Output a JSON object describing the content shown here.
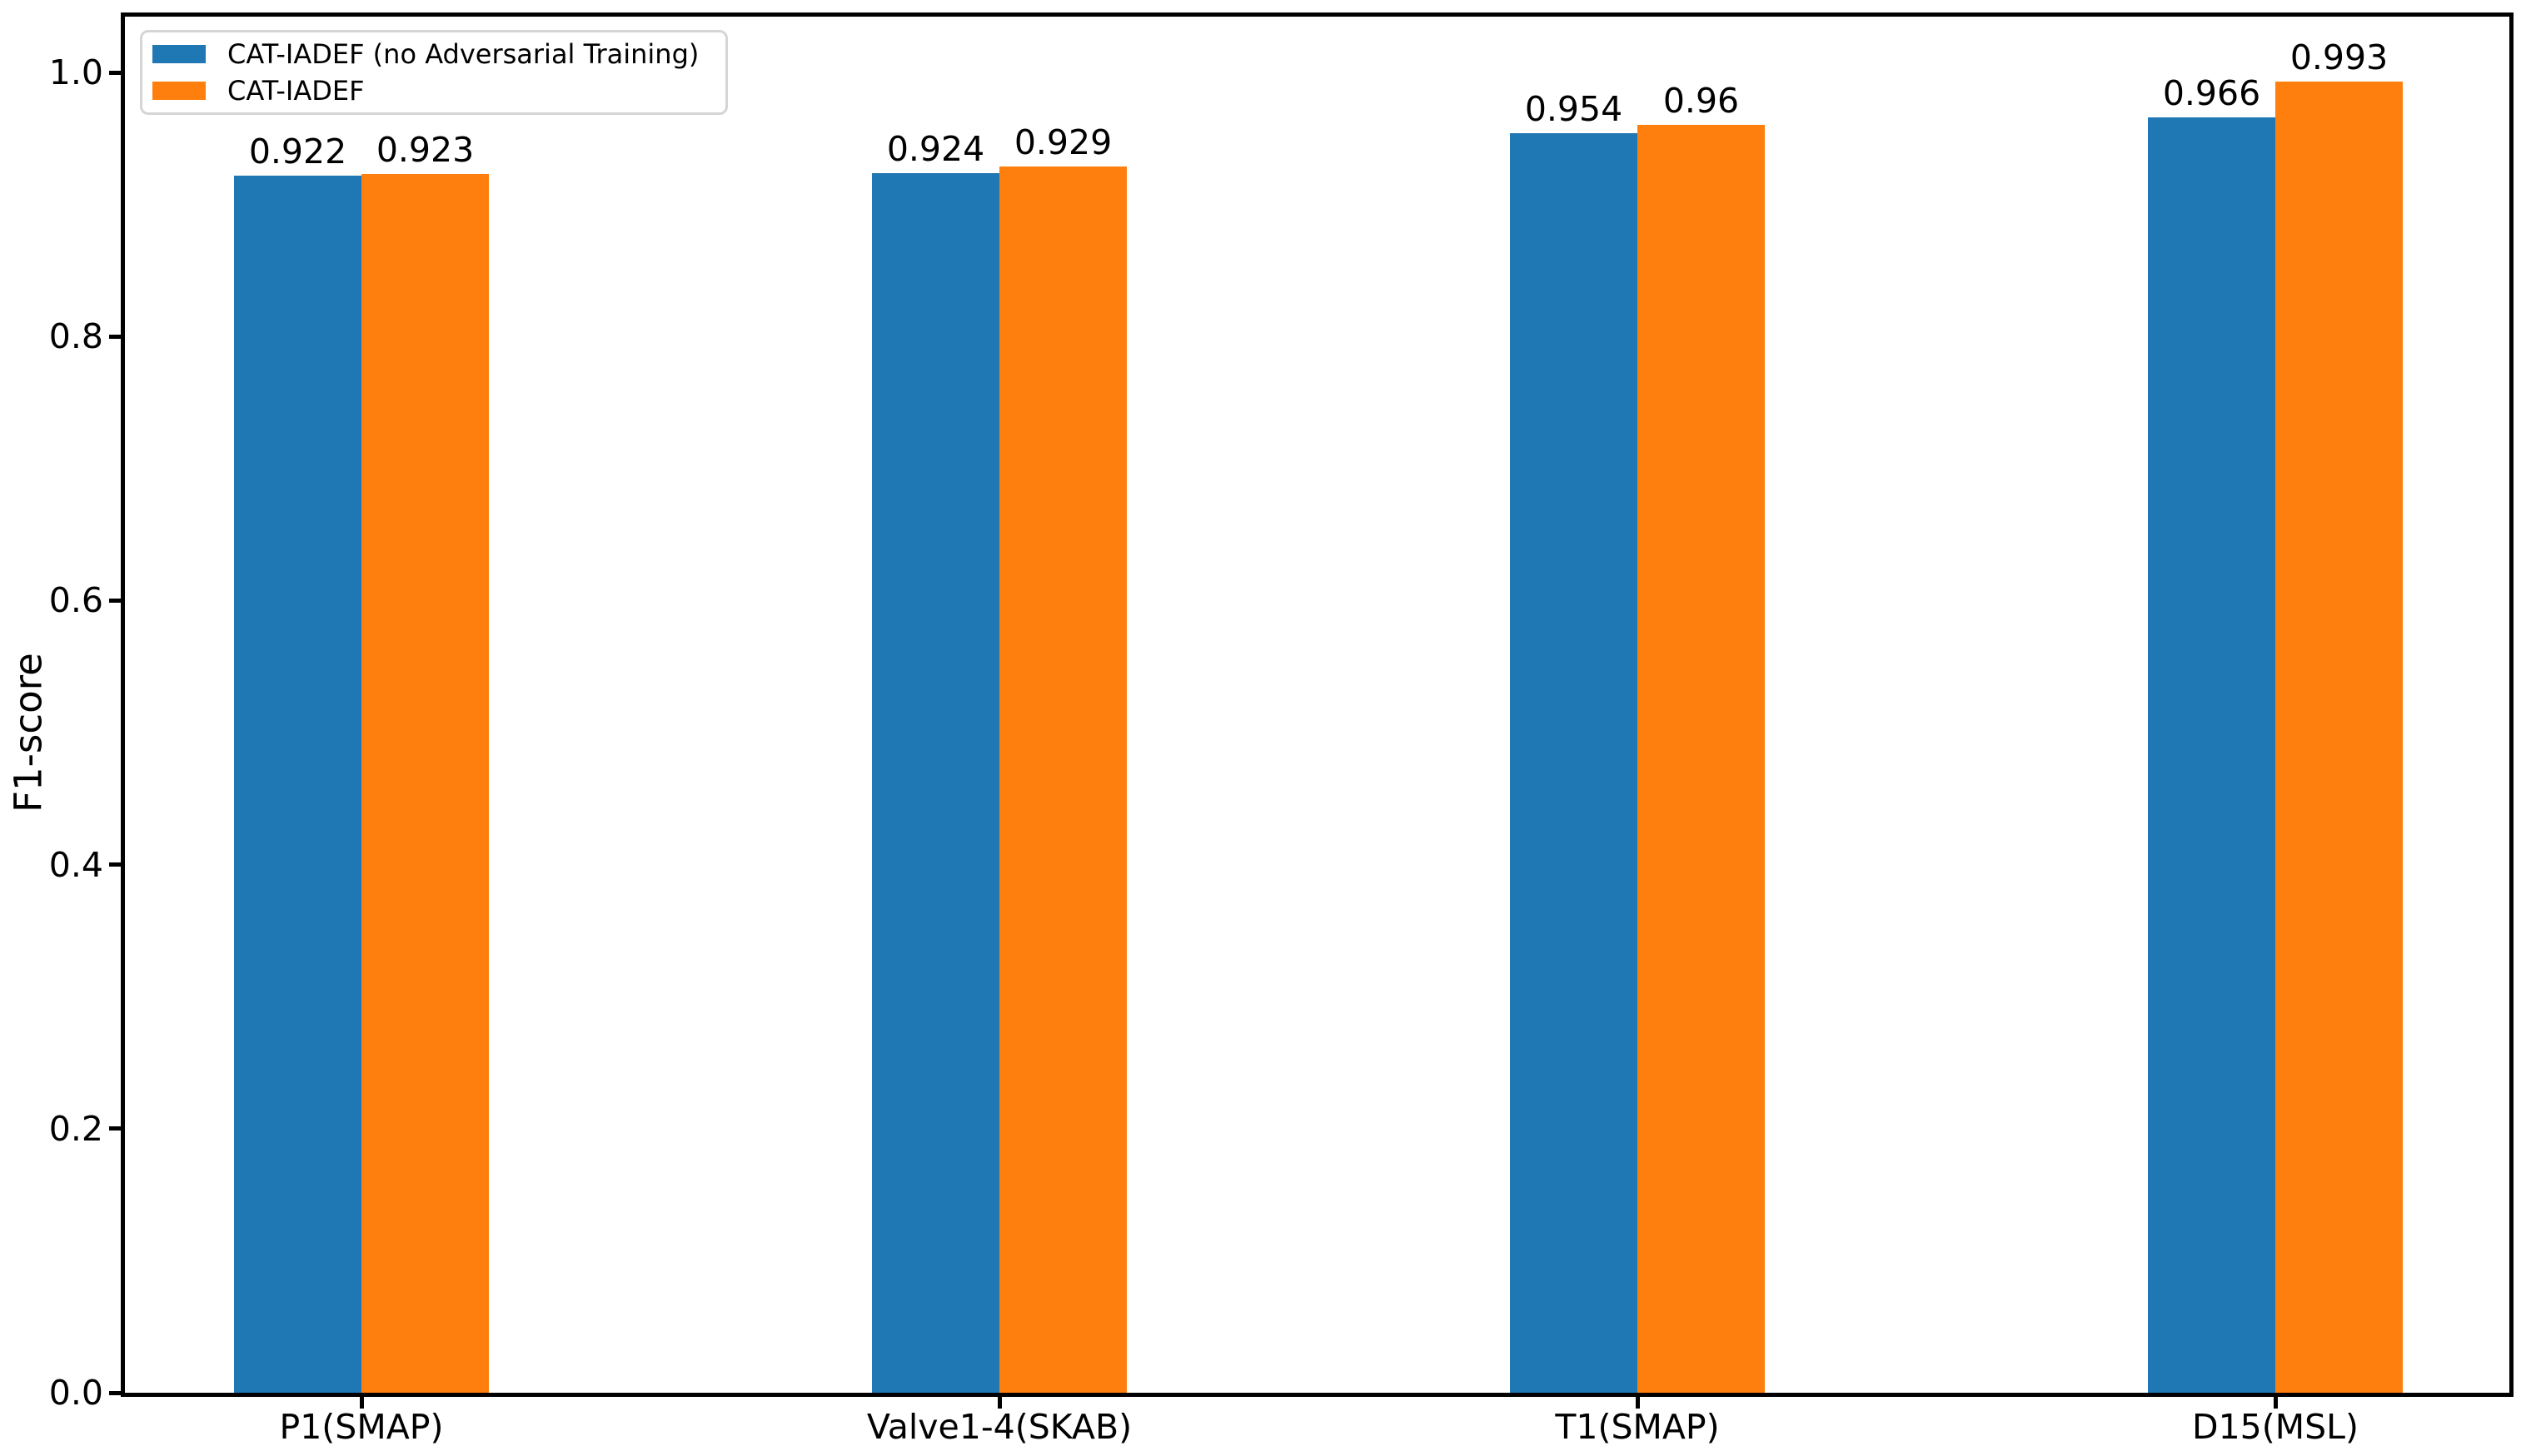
{
  "chart_data": {
    "type": "bar",
    "title": "",
    "xlabel": "",
    "ylabel": "F1-score",
    "categories": [
      "P1(SMAP)",
      "Valve1-4(SKAB)",
      "T1(SMAP)",
      "D15(MSL)"
    ],
    "series": [
      {
        "name": "CAT-IADEF (no Adversarial Training)",
        "color": "#1f77b4",
        "values": [
          0.922,
          0.924,
          0.954,
          0.966
        ],
        "value_labels": [
          "0.922",
          "0.924",
          "0.954",
          "0.966"
        ]
      },
      {
        "name": "CAT-IADEF",
        "color": "#ff7f0e",
        "values": [
          0.923,
          0.929,
          0.96,
          0.993
        ],
        "value_labels": [
          "0.923",
          "0.929",
          "0.96",
          "0.993"
        ]
      }
    ],
    "ylim": [
      0.0,
      1.042
    ],
    "ytick_labels": [
      "0.0",
      "0.2",
      "0.4",
      "0.6",
      "0.8",
      "1.0"
    ],
    "grid": false,
    "legend_position": "upper-left"
  },
  "colors": {
    "series_blue": "#1f77b4",
    "series_orange": "#ff7f0e",
    "axis": "#000000",
    "legend_border": "#d5d5d5",
    "background": "#ffffff"
  }
}
